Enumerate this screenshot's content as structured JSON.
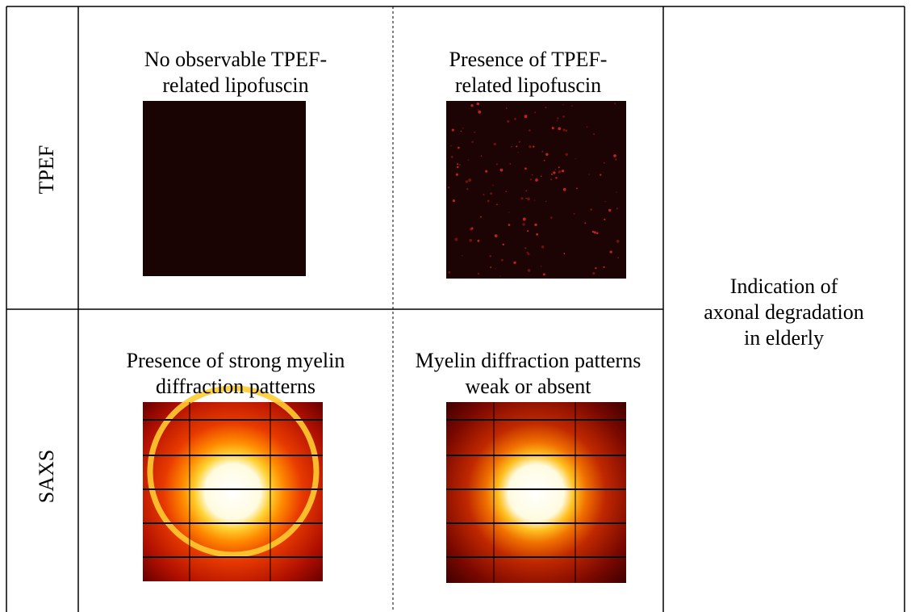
{
  "rows": [
    {
      "label": "TPEF",
      "cells": [
        "No observable TPEF-\nrelated lipofuscin",
        "Presence of TPEF-\nrelated lipofuscin"
      ]
    },
    {
      "label": "SAXS",
      "cells": [
        "Presence of strong myelin\ndiffraction patterns",
        "Myelin diffraction patterns\nweak or absent"
      ]
    }
  ],
  "conclusion": "Indication of\naxonal degradation\nin elderly"
}
